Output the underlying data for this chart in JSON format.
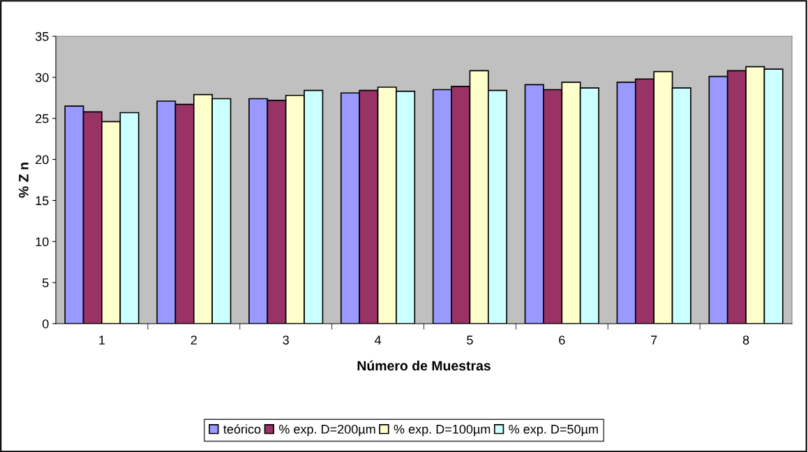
{
  "chart_data": {
    "type": "bar",
    "xlabel": "Número de Muestras",
    "ylabel": "% Z n",
    "categories": [
      "1",
      "2",
      "3",
      "4",
      "5",
      "6",
      "7",
      "8"
    ],
    "series": [
      {
        "name": "teórico",
        "color": "#9999ff",
        "values": [
          26.5,
          27.1,
          27.4,
          28.1,
          28.5,
          29.1,
          29.4,
          30.1
        ]
      },
      {
        "name": "% exp. D=200µm",
        "color": "#993366",
        "values": [
          25.8,
          26.7,
          27.2,
          28.4,
          28.9,
          28.5,
          29.8,
          30.8
        ]
      },
      {
        "name": "% exp. D=100µm",
        "color": "#ffffcc",
        "values": [
          24.6,
          27.9,
          27.8,
          28.8,
          30.8,
          29.4,
          30.7,
          31.3
        ]
      },
      {
        "name": "% exp. D=50µm",
        "color": "#ccffff",
        "values": [
          25.7,
          27.4,
          28.4,
          28.3,
          28.4,
          28.7,
          28.7,
          31.0
        ]
      }
    ],
    "ylim": [
      0,
      35
    ],
    "yticks": [
      0,
      5,
      10,
      15,
      20,
      25,
      30,
      35
    ],
    "grid": false,
    "legend": "bottom"
  }
}
